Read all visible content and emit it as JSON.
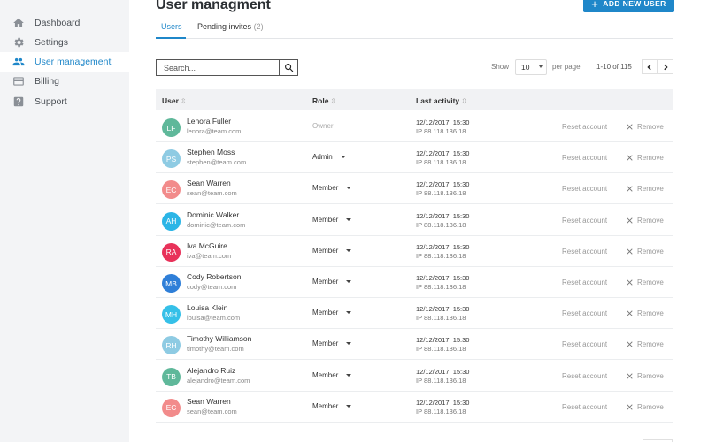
{
  "sidebar": {
    "items": [
      {
        "label": "Dashboard",
        "icon": "home-icon",
        "active": false
      },
      {
        "label": "Settings",
        "icon": "gear-icon",
        "active": false
      },
      {
        "label": "User management",
        "icon": "users-icon",
        "active": true
      },
      {
        "label": "Billing",
        "icon": "credit-card-icon",
        "active": false
      },
      {
        "label": "Support",
        "icon": "help-icon",
        "active": false
      }
    ]
  },
  "header": {
    "title": "User managment",
    "add_button_label": "ADD NEW USER"
  },
  "tabs": [
    {
      "label": "Users",
      "count": ""
    },
    {
      "label": "Pending invites",
      "count": "(2)"
    }
  ],
  "search": {
    "placeholder": "Search...",
    "value": ""
  },
  "pagination": {
    "show_label": "Show",
    "page_size": "10",
    "per_page_label": "per page",
    "range": "1-10 of 115"
  },
  "table": {
    "columns": [
      "User",
      "Role",
      "Last activity"
    ],
    "reset_label": "Reset account",
    "remove_label": "Remove",
    "rows": [
      {
        "initials": "LF",
        "color": "#5fb89a",
        "name": "Lenora Fuller",
        "email": "lenora@team.com",
        "role": "Owner",
        "date": "12/12/2017, 15:30",
        "ip": "IP 88.118.136.18"
      },
      {
        "initials": "PS",
        "color": "#8ecbe3",
        "name": "Stephen Moss",
        "email": "stephen@team.com",
        "role": "Admin",
        "date": "12/12/2017, 15:30",
        "ip": "IP 88.118.136.18"
      },
      {
        "initials": "EC",
        "color": "#f28b8b",
        "name": "Sean Warren",
        "email": "sean@team.com",
        "role": "Member",
        "date": "12/12/2017, 15:30",
        "ip": "IP 88.118.136.18"
      },
      {
        "initials": "AH",
        "color": "#2bb5e6",
        "name": "Dominic Walker",
        "email": "dominic@team.com",
        "role": "Member",
        "date": "12/12/2017, 15:30",
        "ip": "IP 88.118.136.18"
      },
      {
        "initials": "RA",
        "color": "#e8325a",
        "name": "Iva McGuire",
        "email": "iva@team.com",
        "role": "Member",
        "date": "12/12/2017, 15:30",
        "ip": "IP 88.118.136.18"
      },
      {
        "initials": "MB",
        "color": "#2f7fd8",
        "name": "Cody Robertson",
        "email": "cody@team.com",
        "role": "Member",
        "date": "12/12/2017, 15:30",
        "ip": "IP 88.118.136.18"
      },
      {
        "initials": "MH",
        "color": "#35c0e8",
        "name": "Louisa Klein",
        "email": "louisa@team.com",
        "role": "Member",
        "date": "12/12/2017, 15:30",
        "ip": "IP 88.118.136.18"
      },
      {
        "initials": "RH",
        "color": "#8ecbe3",
        "name": "Timothy Williamson",
        "email": "timothy@team.com",
        "role": "Member",
        "date": "12/12/2017, 15:30",
        "ip": "IP 88.118.136.18"
      },
      {
        "initials": "TB",
        "color": "#5fb89a",
        "name": "Alejandro Ruiz",
        "email": "alejandro@team.com",
        "role": "Member",
        "date": "12/12/2017, 15:30",
        "ip": "IP 88.118.136.18"
      },
      {
        "initials": "EC",
        "color": "#f28b8b",
        "name": "Sean Warren",
        "email": "sean@team.com",
        "role": "Member",
        "date": "12/12/2017, 15:30",
        "ip": "IP 88.118.136.18"
      }
    ]
  },
  "colors": {
    "accent": "#1f87c9",
    "sidebar_bg": "#f3f4f6"
  }
}
